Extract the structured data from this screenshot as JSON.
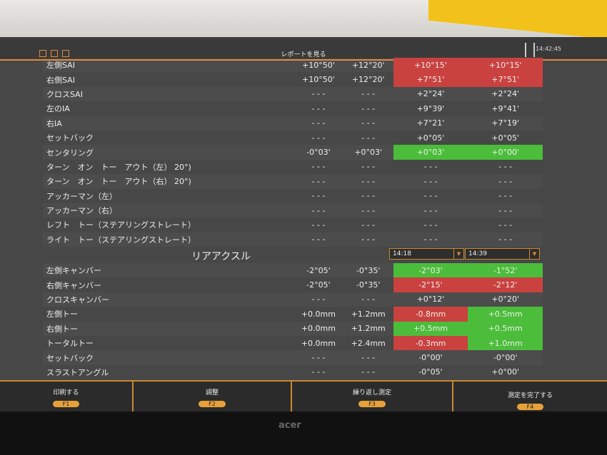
{
  "header": {
    "title": "レポートを見る",
    "clock": "14:42:45"
  },
  "front_rows": [
    {
      "label": "左側SAI",
      "c1": "+10°50'",
      "c2": "+12°20'",
      "m1": "+10°15'",
      "m2": "+10°15'",
      "s1": "red",
      "s2": "red"
    },
    {
      "label": "右側SAI",
      "c1": "+10°50'",
      "c2": "+12°20'",
      "m1": "+7°51'",
      "m2": "+7°51'",
      "s1": "red",
      "s2": "red"
    },
    {
      "label": "クロスSAI",
      "c1": "- - -",
      "c2": "- - -",
      "m1": "+2°24'",
      "m2": "+2°24'",
      "s1": "",
      "s2": ""
    },
    {
      "label": "左のIA",
      "c1": "- - -",
      "c2": "- - -",
      "m1": "+9°39'",
      "m2": "+9°41'",
      "s1": "",
      "s2": ""
    },
    {
      "label": "右IA",
      "c1": "- - -",
      "c2": "- - -",
      "m1": "+7°21'",
      "m2": "+7°19'",
      "s1": "",
      "s2": ""
    },
    {
      "label": "セットバック",
      "c1": "- - -",
      "c2": "- - -",
      "m1": "+0°05'",
      "m2": "+0°05'",
      "s1": "",
      "s2": ""
    },
    {
      "label": "センタリング",
      "c1": "-0°03'",
      "c2": "+0°03'",
      "m1": "+0°03'",
      "m2": "+0°00'",
      "s1": "green",
      "s2": "green"
    },
    {
      "label": "ターン　オン　トー　アウト（左） 20°)",
      "c1": "- - -",
      "c2": "- - -",
      "m1": "- - -",
      "m2": "- - -",
      "s1": "",
      "s2": ""
    },
    {
      "label": "ターン　オン　トー　アウト（右） 20°)",
      "c1": "- - -",
      "c2": "- - -",
      "m1": "- - -",
      "m2": "- - -",
      "s1": "",
      "s2": ""
    },
    {
      "label": "アッカーマン（左）",
      "c1": "- - -",
      "c2": "- - -",
      "m1": "- - -",
      "m2": "- - -",
      "s1": "",
      "s2": ""
    },
    {
      "label": "アッカーマン（右）",
      "c1": "- - -",
      "c2": "- - -",
      "m1": "- - -",
      "m2": "- - -",
      "s1": "",
      "s2": ""
    },
    {
      "label": "レフト　トー（ステアリングストレート）",
      "c1": "- - -",
      "c2": "- - -",
      "m1": "- - -",
      "m2": "- - -",
      "s1": "",
      "s2": ""
    },
    {
      "label": "ライト　トー（ステアリングストレート）",
      "c1": "- - -",
      "c2": "- - -",
      "m1": "- - -",
      "m2": "- - -",
      "s1": "",
      "s2": ""
    }
  ],
  "rear": {
    "title": "リアアクスル",
    "select1": "14:18",
    "select2": "14:39"
  },
  "rear_rows": [
    {
      "label": "左側キャンバー",
      "c1": "-2°05'",
      "c2": "-0°35'",
      "m1": "-2°03'",
      "m2": "-1°52'",
      "s1": "green",
      "s2": "green"
    },
    {
      "label": "右側キャンバー",
      "c1": "-2°05'",
      "c2": "-0°35'",
      "m1": "-2°15'",
      "m2": "-2°12'",
      "s1": "red",
      "s2": "red"
    },
    {
      "label": "クロスキャンバー",
      "c1": "- - -",
      "c2": "- - -",
      "m1": "+0°12'",
      "m2": "+0°20'",
      "s1": "",
      "s2": ""
    },
    {
      "label": "左側トー",
      "c1": "+0.0mm",
      "c2": "+1.2mm",
      "m1": "-0.8mm",
      "m2": "+0.5mm",
      "s1": "red",
      "s2": "green"
    },
    {
      "label": "右側トー",
      "c1": "+0.0mm",
      "c2": "+1.2mm",
      "m1": "+0.5mm",
      "m2": "+0.5mm",
      "s1": "green",
      "s2": "green"
    },
    {
      "label": "トータルトー",
      "c1": "+0.0mm",
      "c2": "+2.4mm",
      "m1": "-0.3mm",
      "m2": "+1.0mm",
      "s1": "red",
      "s2": "green"
    },
    {
      "label": "セットバック",
      "c1": "- - -",
      "c2": "- - -",
      "m1": "-0°00'",
      "m2": "-0°00'",
      "s1": "",
      "s2": ""
    },
    {
      "label": "スラストアングル",
      "c1": "- - -",
      "c2": "- - -",
      "m1": "-0°05'",
      "m2": "+0°00'",
      "s1": "",
      "s2": ""
    }
  ],
  "footer": [
    {
      "label": "印刷する",
      "key": "F1"
    },
    {
      "label": "調整",
      "key": "F2"
    },
    {
      "label": "繰り返し測定",
      "key": "F3"
    },
    {
      "label": "測定を完了する",
      "key": "F4"
    }
  ],
  "colors": {
    "out_of_range": "#c9423f",
    "in_range": "#4bbd3a",
    "accent": "#e08a3a"
  },
  "monitor": {
    "brand": "acer"
  }
}
